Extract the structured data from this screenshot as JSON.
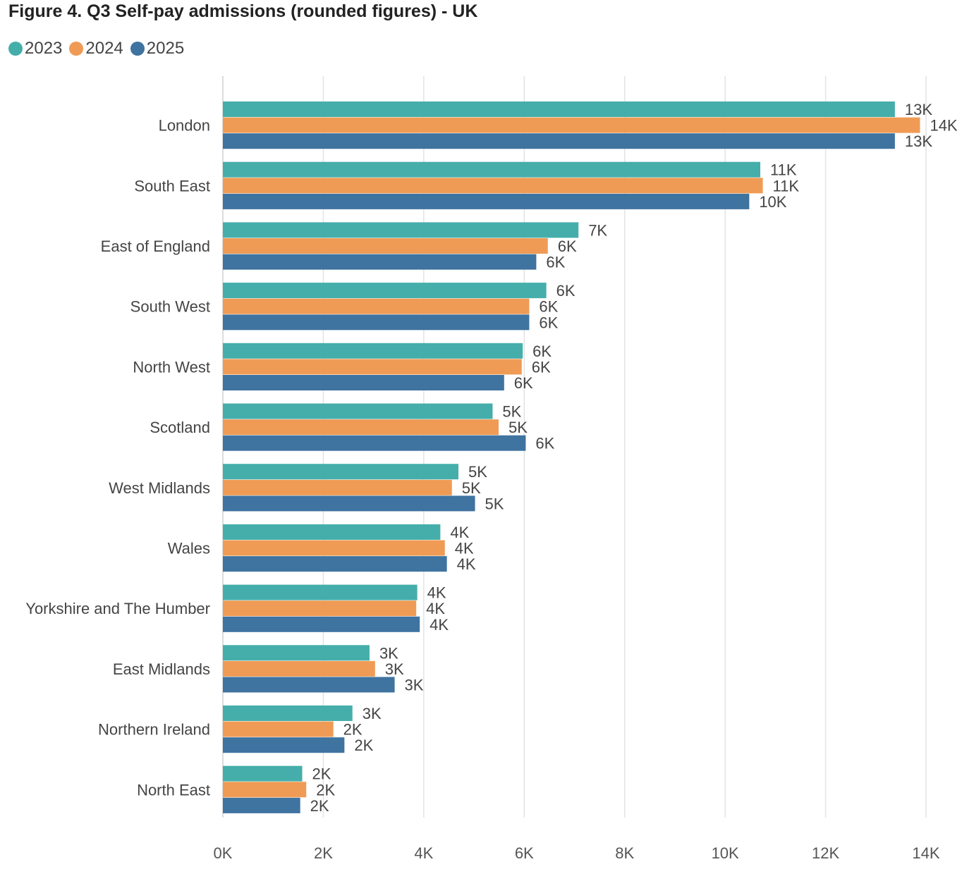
{
  "chart_data": {
    "type": "bar",
    "orientation": "horizontal",
    "title": "Figure 4. Q3 Self-pay admissions (rounded figures) - UK",
    "categories": [
      "London",
      "South East",
      "East of England",
      "South West",
      "North West",
      "Scotland",
      "West Midlands",
      "Wales",
      "Yorkshire and The Humber",
      "East Midlands",
      "Northern Ireland",
      "North East"
    ],
    "series": [
      {
        "name": "2023",
        "color": "#45aeab",
        "values": [
          13380,
          10700,
          7080,
          6440,
          5970,
          5370,
          4690,
          4330,
          3870,
          2920,
          2580,
          1580
        ],
        "labels": [
          "13K",
          "11K",
          "7K",
          "6K",
          "6K",
          "5K",
          "5K",
          "4K",
          "4K",
          "3K",
          "3K",
          "2K"
        ]
      },
      {
        "name": "2024",
        "color": "#ef9b55",
        "values": [
          13880,
          10750,
          6470,
          6100,
          5950,
          5490,
          4560,
          4420,
          3850,
          3030,
          2200,
          1660
        ],
        "labels": [
          "14K",
          "11K",
          "6K",
          "6K",
          "6K",
          "5K",
          "5K",
          "4K",
          "4K",
          "3K",
          "2K",
          "2K"
        ]
      },
      {
        "name": "2025",
        "color": "#3f73a0",
        "values": [
          13380,
          10480,
          6240,
          6100,
          5600,
          6030,
          5020,
          4460,
          3920,
          3420,
          2420,
          1540
        ],
        "labels": [
          "13K",
          "10K",
          "6K",
          "6K",
          "6K",
          "6K",
          "5K",
          "4K",
          "4K",
          "3K",
          "2K",
          "2K"
        ]
      }
    ],
    "xlim": [
      0,
      14000
    ],
    "xticks": [
      0,
      2000,
      4000,
      6000,
      8000,
      10000,
      12000,
      14000
    ],
    "xtick_labels": [
      "0K",
      "2K",
      "4K",
      "6K",
      "8K",
      "10K",
      "12K",
      "14K"
    ],
    "grid": true,
    "legend_position": "top-left"
  }
}
